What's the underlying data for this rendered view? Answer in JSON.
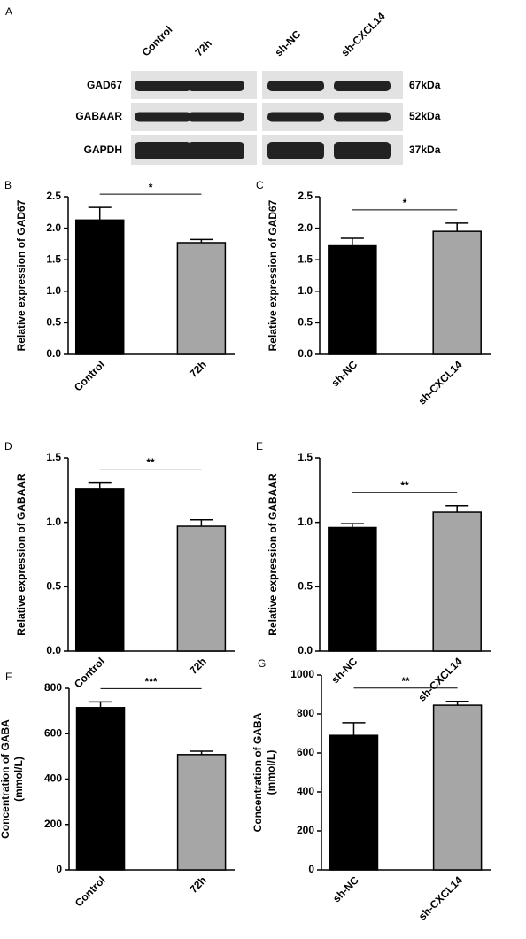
{
  "blot": {
    "label": "A",
    "lanes": [
      "Control",
      "72h",
      "sh-NC",
      "sh-CXCL14"
    ],
    "rows": [
      {
        "name": "GAD67",
        "size": "67kDa"
      },
      {
        "name": "GABAAR",
        "size": "52kDa"
      },
      {
        "name": "GAPDH",
        "size": "37kDa"
      }
    ]
  },
  "chart_data": [
    {
      "type": "bar",
      "panel": "B",
      "ylabel": [
        "Relative  expression of GAD67"
      ],
      "categories": [
        "Control",
        "72h"
      ],
      "values": [
        2.13,
        1.77
      ],
      "errors": [
        0.2,
        0.05
      ],
      "colors": [
        "#000000",
        "#a6a6a6"
      ],
      "ylim": [
        0,
        2.5
      ],
      "yticks": [
        {
          "value": 0,
          "label": "0.0"
        },
        0.5,
        {
          "value": 1,
          "label": "1.0"
        },
        1.5,
        {
          "value": 2,
          "label": "2.0"
        },
        2.5
      ],
      "significance": "*"
    },
    {
      "type": "bar",
      "panel": "C",
      "ylabel": [
        "Relative  expression of GAD67"
      ],
      "categories": [
        "sh-NC",
        "sh-CXCL14"
      ],
      "values": [
        1.72,
        1.95
      ],
      "errors": [
        0.12,
        0.13
      ],
      "colors": [
        "#000000",
        "#a6a6a6"
      ],
      "ylim": [
        0,
        2.5
      ],
      "yticks": [
        {
          "value": 0,
          "label": "0.0"
        },
        0.5,
        {
          "value": 1,
          "label": "1.0"
        },
        1.5,
        {
          "value": 2,
          "label": "2.0"
        },
        2.5
      ],
      "significance": "*"
    },
    {
      "type": "bar",
      "panel": "D",
      "ylabel": [
        "Relative expression of GABAAR"
      ],
      "categories": [
        "Control",
        "72h"
      ],
      "values": [
        1.26,
        0.97
      ],
      "errors": [
        0.05,
        0.05
      ],
      "colors": [
        "#000000",
        "#a6a6a6"
      ],
      "ylim": [
        0,
        1.5
      ],
      "yticks": [
        {
          "value": 0,
          "label": "0.0"
        },
        0.5,
        {
          "value": 1,
          "label": "1.0"
        },
        1.5
      ],
      "significance": "**"
    },
    {
      "type": "bar",
      "panel": "E",
      "ylabel": [
        "Relative expression of GABAAR"
      ],
      "categories": [
        "sh-NC",
        "sh-CXCL14"
      ],
      "values": [
        0.96,
        1.08
      ],
      "errors": [
        0.03,
        0.05
      ],
      "colors": [
        "#000000",
        "#a6a6a6"
      ],
      "ylim": [
        0,
        1.5
      ],
      "yticks": [
        {
          "value": 0,
          "label": "0.0"
        },
        0.5,
        {
          "value": 1,
          "label": "1.0"
        },
        1.5
      ],
      "significance": "**"
    },
    {
      "type": "bar",
      "panel": "F",
      "ylabel": [
        "Concentration of GABA",
        "(mmol/L)"
      ],
      "categories": [
        "Control",
        "72h"
      ],
      "values": [
        715,
        508
      ],
      "errors": [
        25,
        15
      ],
      "colors": [
        "#000000",
        "#a6a6a6"
      ],
      "ylim": [
        0,
        800
      ],
      "yticks": [
        0,
        200,
        400,
        600,
        800
      ],
      "significance": "***"
    },
    {
      "type": "bar",
      "panel": "G",
      "ylabel": [
        "Concentration of GABA",
        "(mmol/L)"
      ],
      "categories": [
        "sh-NC",
        "sh-CXCL14"
      ],
      "values": [
        690,
        845
      ],
      "errors": [
        65,
        20
      ],
      "colors": [
        "#000000",
        "#a6a6a6"
      ],
      "ylim": [
        0,
        1000
      ],
      "yticks": [
        0,
        200,
        400,
        600,
        800,
        1000
      ],
      "significance": "**"
    }
  ]
}
